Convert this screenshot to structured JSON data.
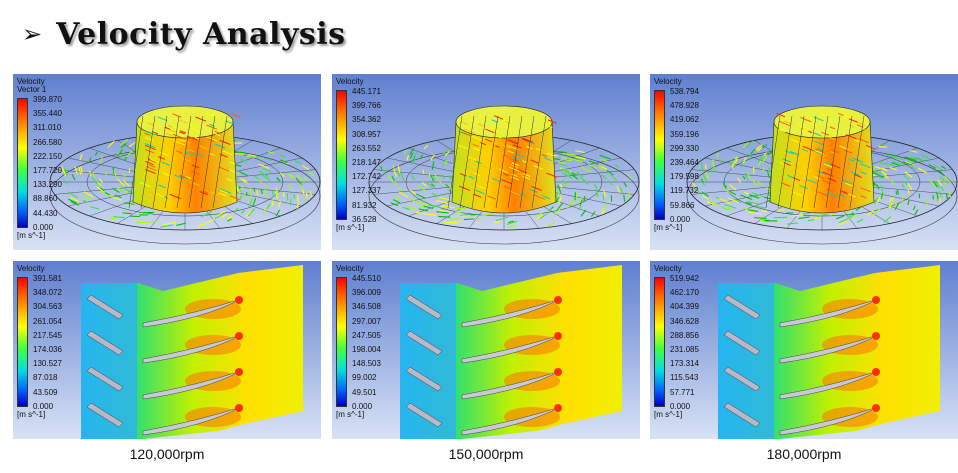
{
  "header": {
    "arrow": "➢",
    "title": "Velocity Analysis"
  },
  "columns": [
    {
      "rpm": "120,000rpm",
      "vector": {
        "title": "Velocity",
        "subtitle": "Vector 1",
        "ticks": [
          "399.870",
          "355.440",
          "311.010",
          "266.580",
          "222.150",
          "177.720",
          "133.290",
          "88.860",
          "44.430",
          "0.000"
        ],
        "unit": "[m s^-1]"
      },
      "contour": {
        "title": "Velocity",
        "ticks": [
          "391.581",
          "348.072",
          "304.563",
          "261.054",
          "217.545",
          "174.036",
          "130.527",
          "87.018",
          "43.509",
          "0.000"
        ],
        "unit": "[m s^-1]"
      }
    },
    {
      "rpm": "150,000rpm",
      "vector": {
        "title": "Velocity",
        "subtitle": "",
        "ticks": [
          "445.171",
          "399.766",
          "354.362",
          "308.957",
          "263.552",
          "218.147",
          "172.742",
          "127.337",
          "81.932",
          "36.528"
        ],
        "unit": "[m s^-1]"
      },
      "contour": {
        "title": "Velocity",
        "ticks": [
          "445.510",
          "396.009",
          "346.508",
          "297.007",
          "247.505",
          "198.004",
          "148.503",
          "99.002",
          "49.501",
          "0.000"
        ],
        "unit": "[m s^-1]"
      }
    },
    {
      "rpm": "180,000rpm",
      "vector": {
        "title": "Velocity",
        "subtitle": "",
        "ticks": [
          "538.794",
          "478.928",
          "419.062",
          "359.196",
          "299.330",
          "239.464",
          "179.598",
          "119.732",
          "59.866",
          "0.000"
        ],
        "unit": "[m s^-1]"
      },
      "contour": {
        "title": "Velocity",
        "ticks": [
          "519.942",
          "462.170",
          "404.399",
          "346.628",
          "288.856",
          "231.085",
          "173.314",
          "115.543",
          "57.771",
          "0.000"
        ],
        "unit": "[m s^-1]"
      }
    }
  ]
}
